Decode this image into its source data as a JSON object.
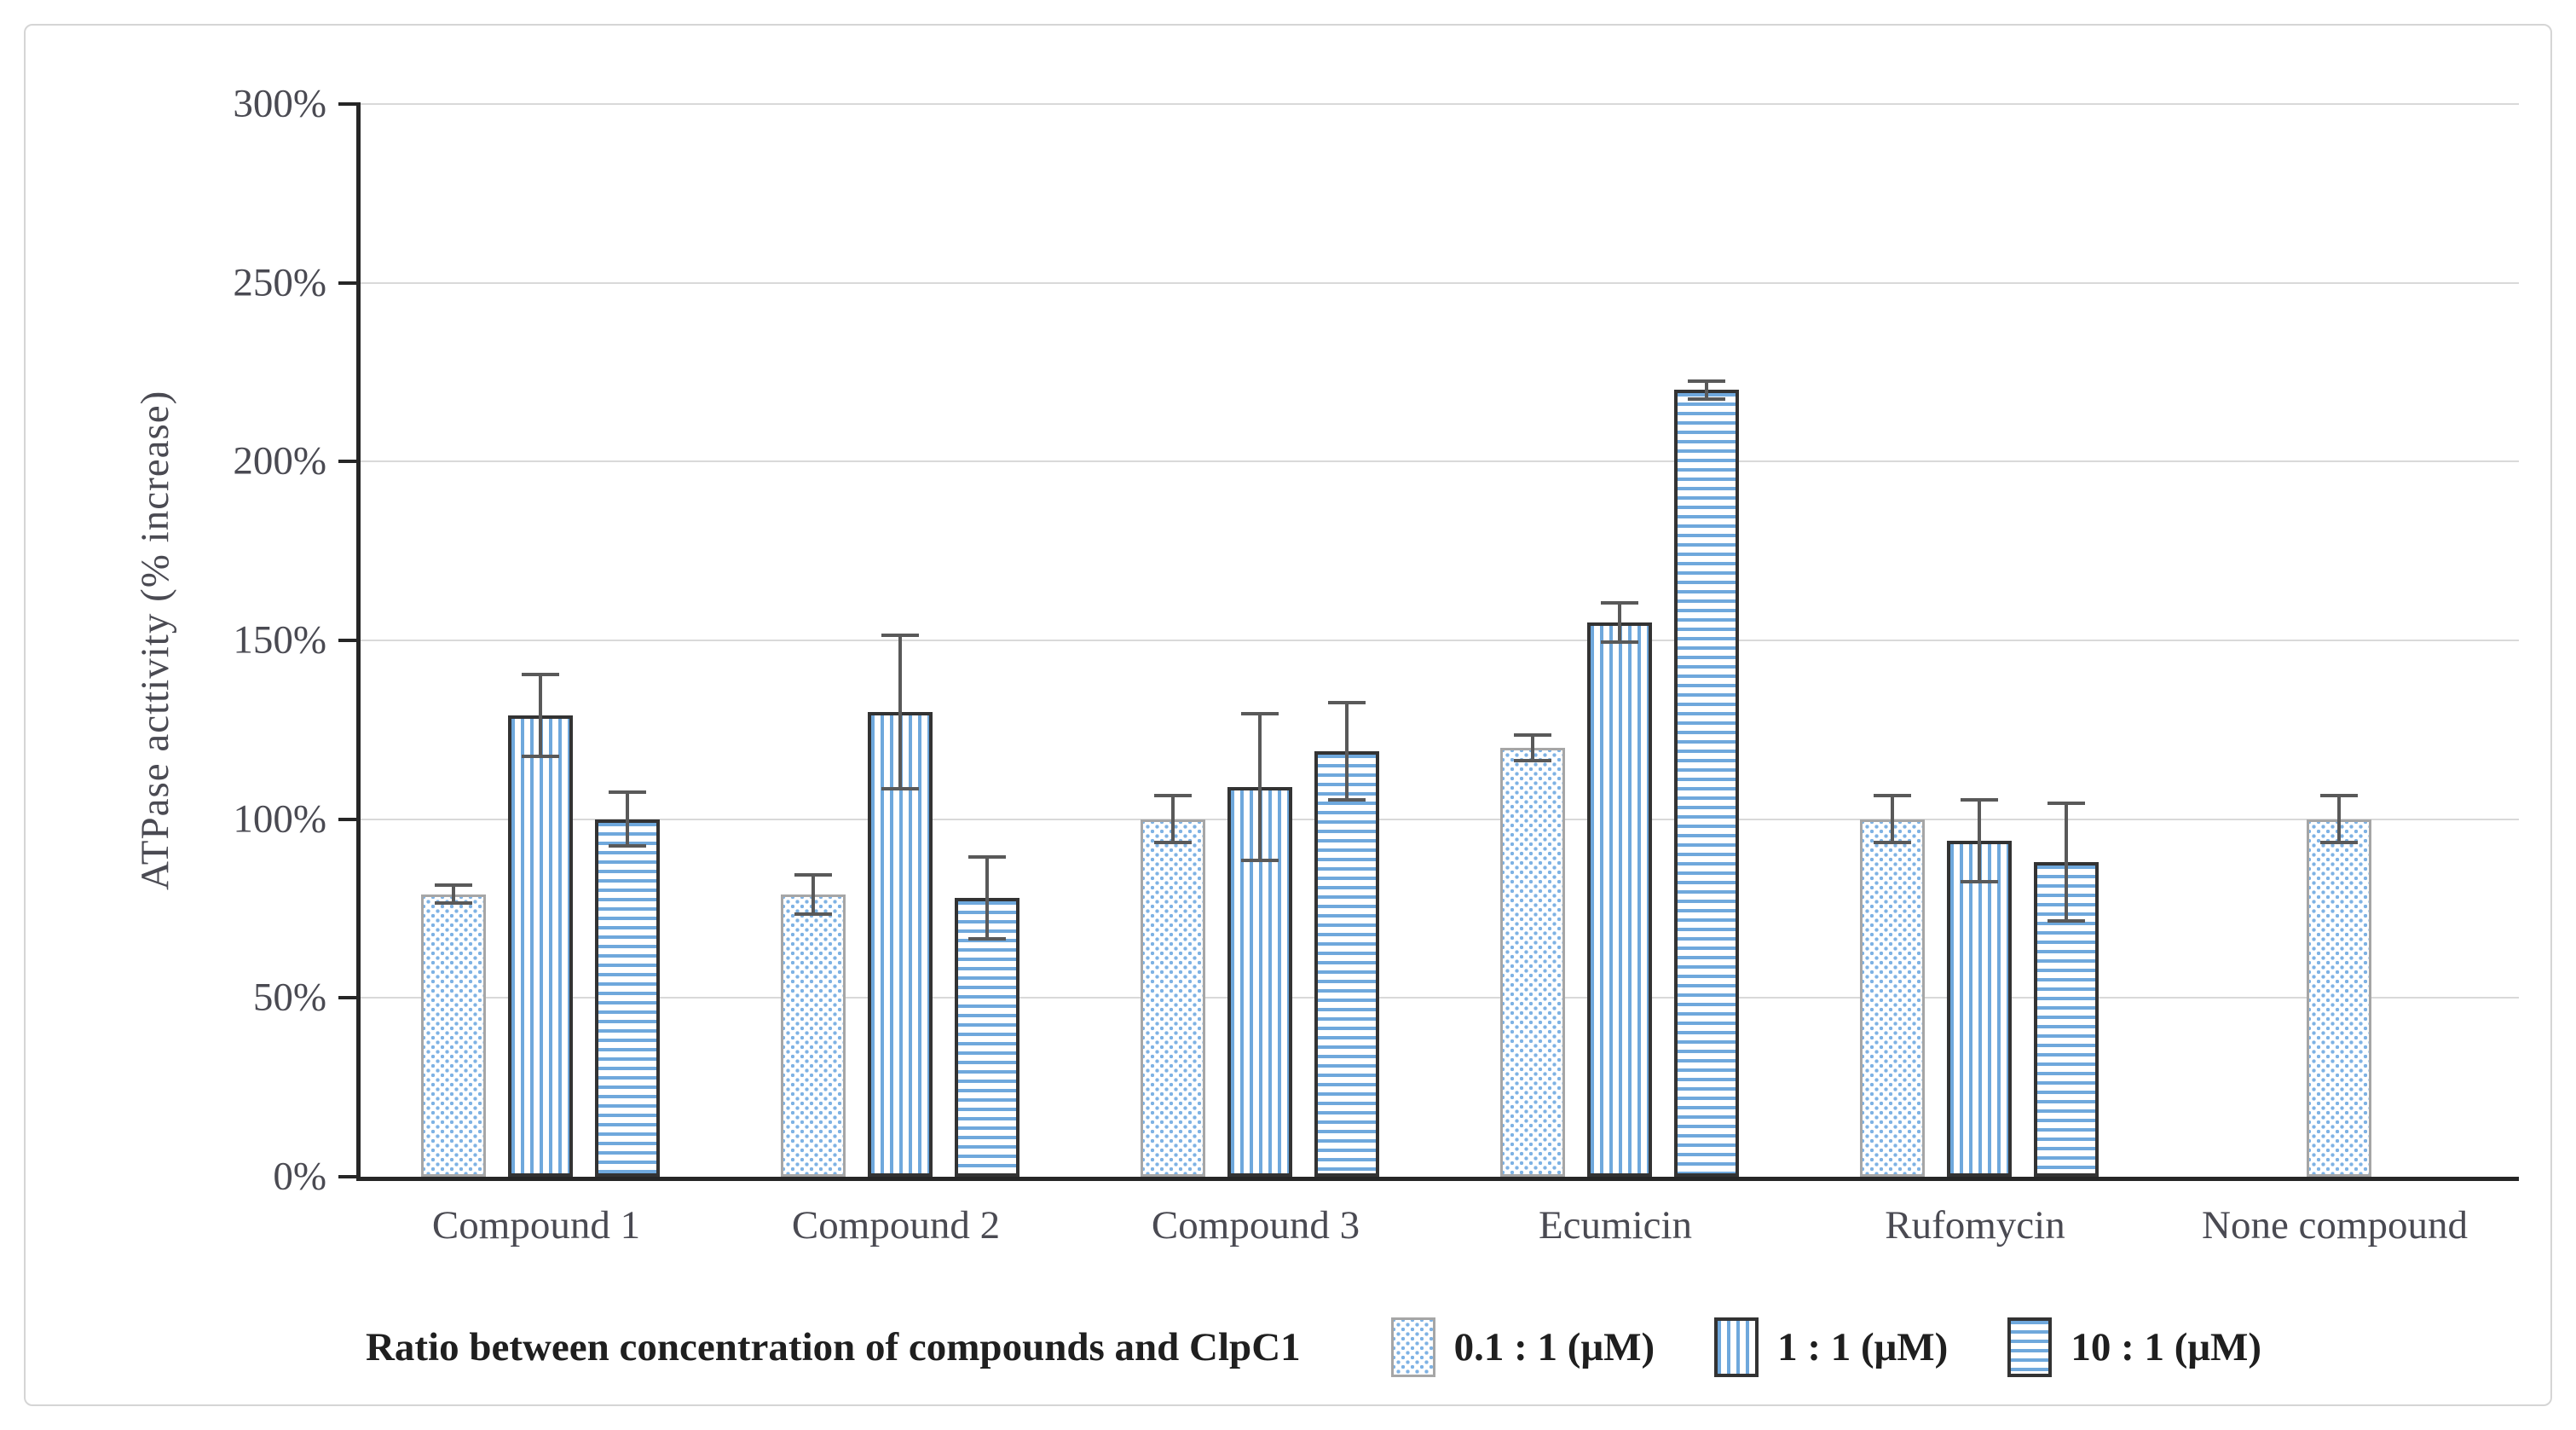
{
  "chart_data": {
    "type": "bar",
    "title": "",
    "ylabel": "ATPase acttivity (% increase)",
    "xlabel": "",
    "categories": [
      "Compound 1",
      "Compound 2",
      "Compound 3",
      "Ecumicin",
      "Rufomycin",
      "None compound"
    ],
    "y_tick_values": [
      0,
      50,
      100,
      150,
      200,
      250,
      300
    ],
    "y_tick_labels": [
      "0%",
      "50%",
      "100%",
      "150%",
      "200%",
      "250%",
      "300%"
    ],
    "ylim": [
      0,
      300
    ],
    "grid": true,
    "legend_position": "bottom",
    "legend_title": "Ratio between concentration of compounds and ClpC1",
    "series": [
      {
        "name": "0.1 : 1 (μM)",
        "pattern": "dots",
        "values": [
          79,
          79,
          100,
          120,
          100,
          100
        ],
        "errors": [
          3,
          6,
          7,
          4,
          7,
          7
        ]
      },
      {
        "name": "1 : 1 (μM)",
        "pattern": "vertical-stripes",
        "values": [
          129,
          130,
          109,
          155,
          94,
          null
        ],
        "errors": [
          12,
          22,
          21,
          6,
          12,
          null
        ]
      },
      {
        "name": "10 : 1 (μM)",
        "pattern": "horizontal-stripes",
        "values": [
          100,
          78,
          119,
          220,
          88,
          null
        ],
        "errors": [
          8,
          12,
          14,
          3,
          17,
          null
        ]
      }
    ]
  },
  "colors": {
    "stripe_blue": "#6fa8dc",
    "dot_blue": "#7eb2e4",
    "gridline": "#d9d9d9",
    "axis": "#262626",
    "error_bar": "#595959",
    "dotted_bar_border": "#a6a6a6",
    "striped_bar_border": "#333333",
    "tick_text": "#4a4a52",
    "legend_text": "#1f1f1f",
    "frame_border": "#d5d5d5"
  }
}
